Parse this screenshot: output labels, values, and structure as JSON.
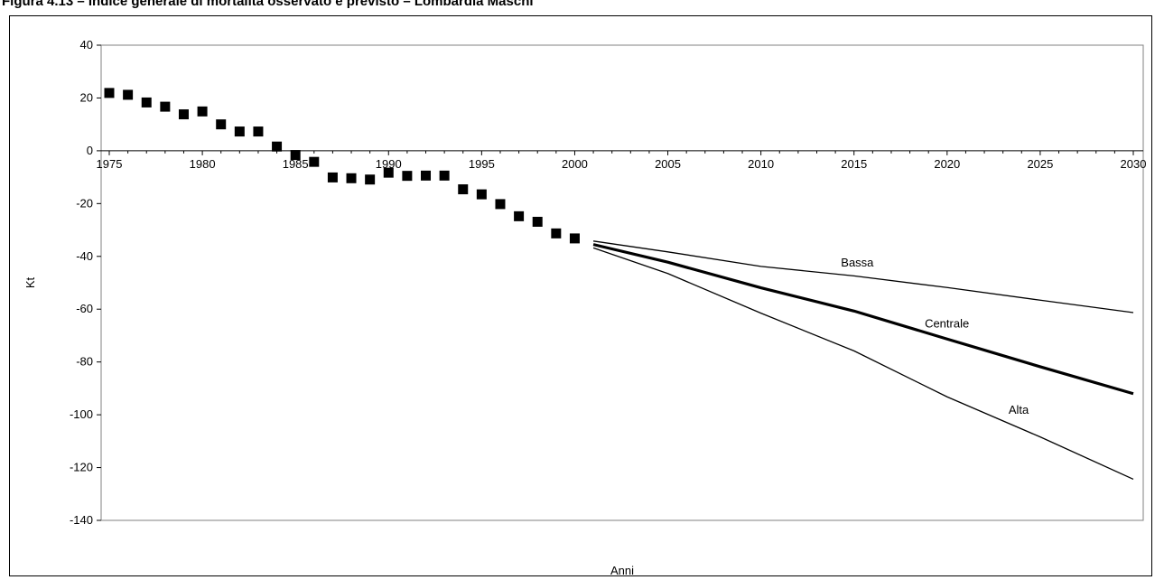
{
  "figure": {
    "title": "Figura 4.13 – Indice generale di mortalità osservato e previsto – Lombardia Maschi"
  },
  "chart_data": {
    "type": "line",
    "xlabel": "Anni",
    "ylabel": "Kt",
    "xlim": [
      1975,
      2030
    ],
    "ylim": [
      -140,
      40
    ],
    "x_ticks": [
      1975,
      1980,
      1985,
      1990,
      1995,
      2000,
      2005,
      2010,
      2015,
      2020,
      2025,
      2030
    ],
    "y_ticks": [
      40,
      20,
      0,
      -20,
      -40,
      -60,
      -80,
      -100,
      -120,
      -140
    ],
    "grid": false,
    "legend": "none",
    "observed": {
      "marker": "square",
      "x": [
        1975,
        1976,
        1977,
        1978,
        1979,
        1980,
        1981,
        1982,
        1983,
        1984,
        1985,
        1986,
        1987,
        1988,
        1989,
        1990,
        1991,
        1992,
        1993,
        1994,
        1995,
        1996,
        1997,
        1998,
        1999,
        2000
      ],
      "y": [
        21.9,
        21.2,
        18.3,
        16.7,
        13.8,
        14.9,
        10.0,
        7.3,
        7.3,
        1.6,
        -1.6,
        -4.2,
        -10.1,
        -10.4,
        -10.9,
        -8.3,
        -9.5,
        -9.4,
        -9.4,
        -14.6,
        -16.5,
        -20.2,
        -24.8,
        -26.9,
        -31.3,
        -33.2
      ]
    },
    "series": [
      {
        "name": "Bassa",
        "x": [
          2001,
          2005,
          2010,
          2015,
          2020,
          2025,
          2030
        ],
        "y": [
          -34.2,
          -38.3,
          -43.8,
          -47.4,
          -51.8,
          -56.6,
          -61.3
        ]
      },
      {
        "name": "Centrale",
        "x": [
          2001,
          2005,
          2010,
          2015,
          2020,
          2025,
          2030
        ],
        "y": [
          -35.5,
          -42.2,
          -51.9,
          -60.7,
          -71.3,
          -81.8,
          -92.0
        ]
      },
      {
        "name": "Alta",
        "x": [
          2001,
          2005,
          2010,
          2015,
          2020,
          2025,
          2030
        ],
        "y": [
          -36.8,
          -46.5,
          -61.5,
          -75.8,
          -93.2,
          -108.4,
          -124.4
        ]
      }
    ]
  }
}
